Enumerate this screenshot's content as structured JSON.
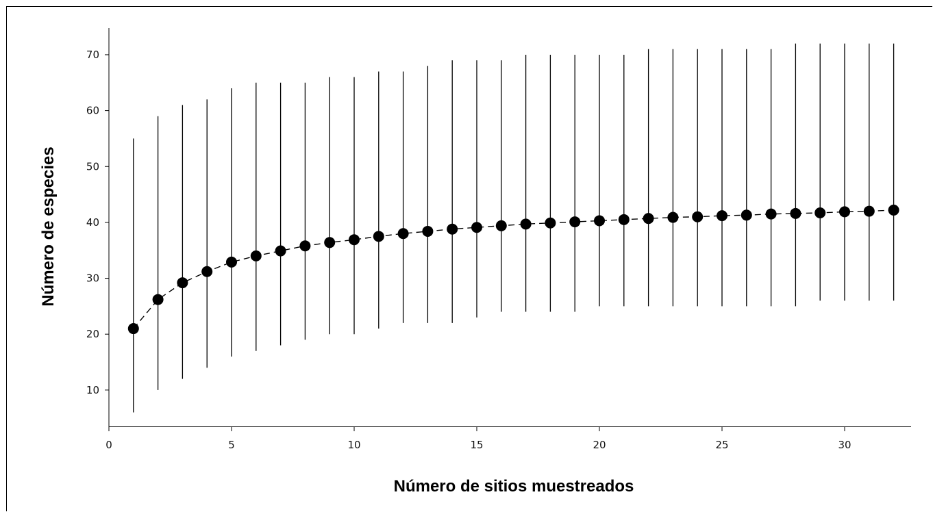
{
  "chart_data": {
    "type": "scatter",
    "title": "",
    "xlabel": "Número de sitios muestreados",
    "ylabel": "Número de especies",
    "xlim": [
      0,
      33
    ],
    "ylim": [
      3,
      75
    ],
    "x_ticks": [
      0,
      5,
      10,
      15,
      20,
      25,
      30
    ],
    "y_ticks": [
      10,
      20,
      30,
      40,
      50,
      60,
      70
    ],
    "grid": false,
    "legend": "none",
    "series": [
      {
        "x": [
          1,
          2,
          3,
          4,
          5,
          6,
          7,
          8,
          9,
          10,
          11,
          12,
          13,
          14,
          15,
          16,
          17,
          18,
          19,
          20,
          21,
          22,
          23,
          24,
          25,
          26,
          27,
          28,
          29,
          30,
          31,
          32
        ],
        "y": [
          21,
          26.2,
          29.2,
          31.2,
          32.9,
          34,
          34.9,
          35.8,
          36.4,
          36.9,
          37.5,
          38,
          38.4,
          38.8,
          39.1,
          39.4,
          39.7,
          39.9,
          40.1,
          40.3,
          40.5,
          40.7,
          40.9,
          41,
          41.2,
          41.3,
          41.5,
          41.6,
          41.7,
          41.9,
          42,
          42.2
        ],
        "y_lower": [
          6,
          10,
          12,
          14,
          16,
          17,
          18,
          19,
          20,
          20,
          21,
          22,
          22,
          22,
          23,
          24,
          24,
          24,
          24,
          25,
          25,
          25,
          25,
          25,
          25,
          25,
          25,
          25,
          26,
          26,
          26,
          26
        ],
        "y_upper": [
          55,
          59,
          61,
          62,
          64,
          65,
          65,
          65,
          66,
          66,
          67,
          67,
          68,
          69,
          69,
          69,
          70,
          70,
          70,
          70,
          70,
          71,
          71,
          71,
          71,
          71,
          71,
          72,
          72,
          72,
          72,
          72
        ],
        "marker_color": "#000000",
        "line_style": "dashed"
      }
    ]
  }
}
